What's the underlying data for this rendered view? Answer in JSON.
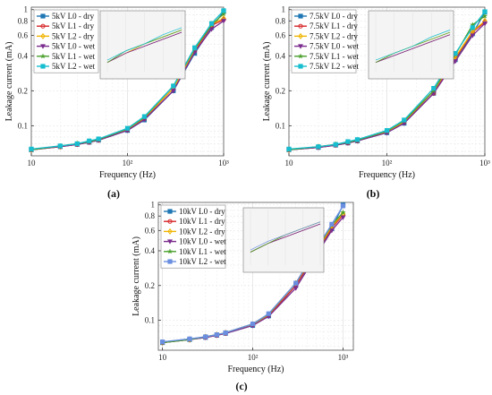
{
  "chart_data": [
    {
      "type": "line",
      "panel_label": "(a)",
      "xlabel": "Frequency (Hz)",
      "ylabel": "Leakage current (mA)",
      "x_scale": "log",
      "y_scale": "log",
      "xlim": [
        10,
        1000
      ],
      "ylim": [
        0.055,
        1.05
      ],
      "y_ticks": [
        0.1,
        0.2,
        0.4,
        0.6,
        0.8,
        1
      ],
      "y_tick_labels": [
        "0.1",
        "0.2",
        "0.4",
        "0.6",
        "0.8",
        "1"
      ],
      "x_ticks": [
        10,
        100,
        1000
      ],
      "x_tick_labels": [
        "10",
        "10²",
        "10³"
      ],
      "grid": true,
      "legend_position": "top-left",
      "x": [
        10,
        20,
        30,
        40,
        50,
        100,
        150,
        300,
        500,
        750,
        1000
      ],
      "series": [
        {
          "name": "5kV L0 - dry",
          "color": "#1f77b4",
          "marker": "square",
          "values": [
            0.062,
            0.066,
            0.069,
            0.072,
            0.075,
            0.091,
            0.112,
            0.2,
            0.42,
            0.7,
            0.96
          ]
        },
        {
          "name": "5kV L1 - dry",
          "color": "#d62728",
          "marker": "circle",
          "values": [
            0.062,
            0.066,
            0.069,
            0.072,
            0.075,
            0.092,
            0.115,
            0.21,
            0.44,
            0.73,
            0.82
          ]
        },
        {
          "name": "5kV L2 - dry",
          "color": "#f0b400",
          "marker": "diamond",
          "values": [
            0.062,
            0.066,
            0.07,
            0.073,
            0.076,
            0.093,
            0.117,
            0.21,
            0.45,
            0.75,
            0.84
          ]
        },
        {
          "name": "5kV L0 - wet",
          "color": "#7b2d8e",
          "marker": "triangle-down",
          "values": [
            0.062,
            0.066,
            0.069,
            0.072,
            0.075,
            0.091,
            0.113,
            0.2,
            0.43,
            0.68,
            0.8
          ]
        },
        {
          "name": "5kV L1 - wet",
          "color": "#4aa02c",
          "marker": "star",
          "values": [
            0.062,
            0.067,
            0.07,
            0.073,
            0.076,
            0.094,
            0.118,
            0.22,
            0.46,
            0.74,
            0.92
          ]
        },
        {
          "name": "5kV L2 - wet",
          "color": "#17becf",
          "marker": "square",
          "values": [
            0.063,
            0.067,
            0.07,
            0.074,
            0.077,
            0.095,
            0.12,
            0.22,
            0.47,
            0.76,
            0.98
          ]
        }
      ]
    },
    {
      "type": "line",
      "panel_label": "(b)",
      "xlabel": "Frequency (Hz)",
      "ylabel": "Leakage current (mA)",
      "x_scale": "log",
      "y_scale": "log",
      "xlim": [
        10,
        1000
      ],
      "ylim": [
        0.055,
        1.05
      ],
      "y_ticks": [
        0.1,
        0.2,
        0.4,
        0.6,
        0.8,
        1
      ],
      "y_tick_labels": [
        "0.1",
        "0.2",
        "0.4",
        "0.6",
        "0.8",
        "1"
      ],
      "x_ticks": [
        10,
        100,
        1000
      ],
      "x_tick_labels": [
        "10",
        "10²",
        "10³"
      ],
      "grid": true,
      "legend_position": "top-left",
      "x": [
        10,
        20,
        30,
        40,
        50,
        100,
        150,
        300,
        500,
        750,
        1000
      ],
      "series": [
        {
          "name": "7.5kV L0 - dry",
          "color": "#1f77b4",
          "marker": "square",
          "values": [
            0.062,
            0.065,
            0.068,
            0.071,
            0.074,
            0.087,
            0.105,
            0.19,
            0.37,
            0.62,
            0.95
          ]
        },
        {
          "name": "7.5kV L1 - dry",
          "color": "#d62728",
          "marker": "circle",
          "values": [
            0.062,
            0.065,
            0.068,
            0.071,
            0.074,
            0.088,
            0.107,
            0.19,
            0.38,
            0.64,
            0.78
          ]
        },
        {
          "name": "7.5kV L2 - dry",
          "color": "#f0b400",
          "marker": "diamond",
          "values": [
            0.062,
            0.066,
            0.069,
            0.072,
            0.075,
            0.089,
            0.108,
            0.2,
            0.39,
            0.65,
            0.8
          ]
        },
        {
          "name": "7.5kV L0 - wet",
          "color": "#7b2d8e",
          "marker": "triangle-down",
          "values": [
            0.062,
            0.065,
            0.068,
            0.071,
            0.074,
            0.087,
            0.105,
            0.19,
            0.36,
            0.6,
            0.76
          ]
        },
        {
          "name": "7.5kV L1 - wet",
          "color": "#4aa02c",
          "marker": "star",
          "values": [
            0.062,
            0.066,
            0.069,
            0.072,
            0.075,
            0.09,
            0.11,
            0.2,
            0.41,
            0.74,
            0.88
          ]
        },
        {
          "name": "7.5kV L2 - wet",
          "color": "#17becf",
          "marker": "square",
          "values": [
            0.063,
            0.066,
            0.069,
            0.073,
            0.076,
            0.091,
            0.112,
            0.21,
            0.42,
            0.7,
            0.96
          ]
        }
      ]
    },
    {
      "type": "line",
      "panel_label": "(c)",
      "xlabel": "Frequency (Hz)",
      "ylabel": "Leakage current (mA)",
      "x_scale": "log",
      "y_scale": "log",
      "xlim": [
        9,
        1300
      ],
      "ylim": [
        0.055,
        1.05
      ],
      "y_ticks": [
        0.1,
        0.2,
        0.4,
        0.6,
        0.8,
        1
      ],
      "y_tick_labels": [
        "0.1",
        "0.2",
        "0.4",
        "0.6",
        "0.8",
        "1"
      ],
      "x_ticks": [
        10,
        100,
        1000
      ],
      "x_tick_labels": [
        "10",
        "10²",
        "10³"
      ],
      "grid": true,
      "legend_position": "top-left",
      "x": [
        10,
        20,
        30,
        40,
        50,
        100,
        150,
        300,
        500,
        750,
        1000
      ],
      "series": [
        {
          "name": "10kV L0 - dry",
          "color": "#1f77b4",
          "marker": "square",
          "values": [
            0.064,
            0.068,
            0.071,
            0.074,
            0.077,
            0.09,
            0.109,
            0.2,
            0.37,
            0.62,
            1.0
          ]
        },
        {
          "name": "10kV L1 - dry",
          "color": "#d62728",
          "marker": "circle",
          "values": [
            0.064,
            0.068,
            0.071,
            0.074,
            0.077,
            0.091,
            0.11,
            0.2,
            0.38,
            0.63,
            0.82
          ]
        },
        {
          "name": "10kV L2 - dry",
          "color": "#f0b400",
          "marker": "diamond",
          "values": [
            0.064,
            0.068,
            0.072,
            0.075,
            0.078,
            0.092,
            0.112,
            0.21,
            0.39,
            0.65,
            0.84
          ]
        },
        {
          "name": "10kV L0 - wet",
          "color": "#7b2d8e",
          "marker": "triangle-down",
          "values": [
            0.064,
            0.068,
            0.071,
            0.074,
            0.077,
            0.09,
            0.108,
            0.19,
            0.36,
            0.6,
            0.78
          ]
        },
        {
          "name": "10kV L1 - wet",
          "color": "#4aa02c",
          "marker": "star",
          "values": [
            0.064,
            0.068,
            0.072,
            0.075,
            0.078,
            0.093,
            0.113,
            0.21,
            0.4,
            0.67,
            0.86
          ]
        },
        {
          "name": "10kV L2 - wet",
          "color": "#6a8fe0",
          "marker": "square",
          "values": [
            0.065,
            0.069,
            0.072,
            0.075,
            0.078,
            0.093,
            0.114,
            0.21,
            0.41,
            0.68,
            0.98
          ]
        }
      ]
    }
  ]
}
